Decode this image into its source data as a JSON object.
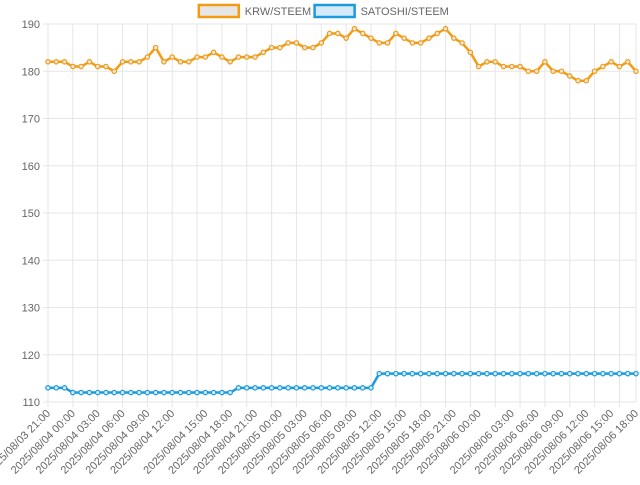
{
  "chart_data": {
    "type": "line",
    "title": "",
    "xlabel": "",
    "ylabel": "",
    "ylim": [
      110,
      190
    ],
    "yticks": [
      110,
      120,
      130,
      140,
      150,
      160,
      170,
      180,
      190
    ],
    "grid": true,
    "legend_position": "top-center",
    "x_tick_labels": [
      "2025/08/03 21:00",
      "2025/08/04 00:00",
      "2025/08/04 03:00",
      "2025/08/04 06:00",
      "2025/08/04 09:00",
      "2025/08/04 12:00",
      "2025/08/04 15:00",
      "2025/08/04 18:00",
      "2025/08/04 21:00",
      "2025/08/05 00:00",
      "2025/08/05 03:00",
      "2025/08/05 06:00",
      "2025/08/05 09:00",
      "2025/08/05 12:00",
      "2025/08/05 15:00",
      "2025/08/05 18:00",
      "2025/08/05 21:00",
      "2025/08/06 00:00",
      "2025/08/06 03:00",
      "2025/08/06 06:00",
      "2025/08/06 09:00",
      "2025/08/06 12:00",
      "2025/08/06 15:00",
      "2025/08/06 18:00"
    ],
    "series": [
      {
        "name": "KRW/STEEM",
        "color": "#f39c12",
        "fill": "#e6e6e6",
        "values": [
          182,
          182,
          182,
          181,
          181,
          182,
          181,
          181,
          180,
          182,
          182,
          182,
          183,
          185,
          182,
          183,
          182,
          182,
          183,
          183,
          184,
          183,
          182,
          183,
          183,
          183,
          184,
          185,
          185,
          186,
          186,
          185,
          185,
          186,
          188,
          188,
          187,
          189,
          188,
          187,
          186,
          186,
          188,
          187,
          186,
          186,
          187,
          188,
          189,
          187,
          186,
          184,
          181,
          182,
          182,
          181,
          181,
          181,
          180,
          180,
          182,
          180,
          180,
          179,
          178,
          178,
          180,
          181,
          182,
          181,
          182,
          180
        ]
      },
      {
        "name": "SATOSHI/STEEM",
        "color": "#1a9bdc",
        "fill": "#d6e9f8",
        "values": [
          113,
          113,
          113,
          112,
          112,
          112,
          112,
          112,
          112,
          112,
          112,
          112,
          112,
          112,
          112,
          112,
          112,
          112,
          112,
          112,
          112,
          112,
          112,
          113,
          113,
          113,
          113,
          113,
          113,
          113,
          113,
          113,
          113,
          113,
          113,
          113,
          113,
          113,
          113,
          113,
          116,
          116,
          116,
          116,
          116,
          116,
          116,
          116,
          116,
          116,
          116,
          116,
          116,
          116,
          116,
          116,
          116,
          116,
          116,
          116,
          116,
          116,
          116,
          116,
          116,
          116,
          116,
          116,
          116,
          116,
          116,
          116
        ]
      }
    ]
  }
}
